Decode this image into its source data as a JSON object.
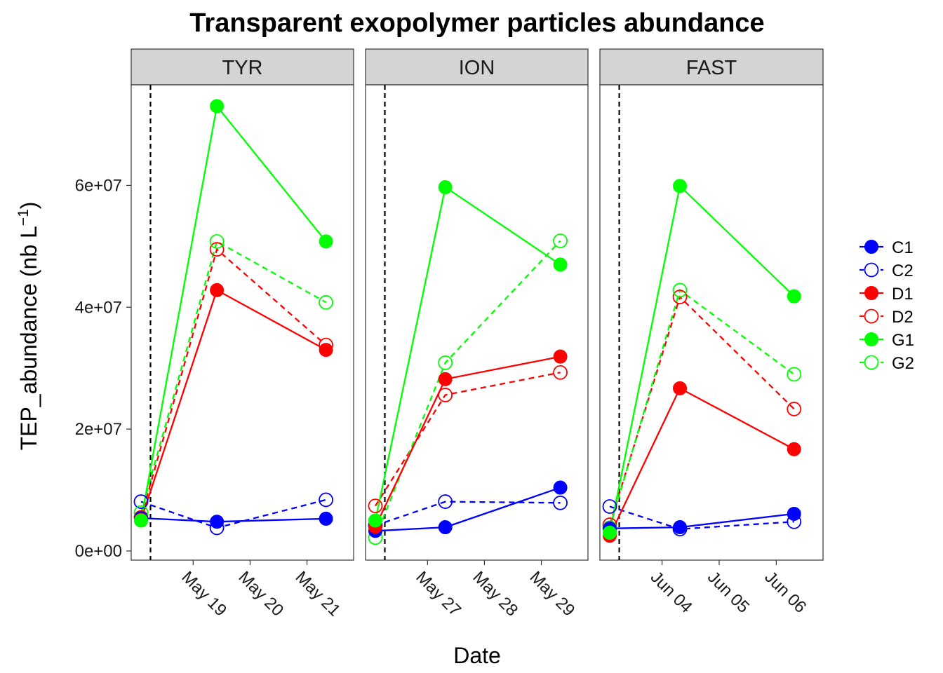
{
  "chart_data": {
    "type": "line",
    "title": "Transparent exopolymer particles abundance",
    "xlabel": "Date",
    "ylabel": "TEP_abundance (nb L",
    "ylabel_superscript": "−1",
    "ylabel_close": ")",
    "ylim": [
      -1500000,
      76500000
    ],
    "y_ticks": [
      0,
      20000000,
      40000000,
      60000000
    ],
    "y_tick_labels": [
      "0e+00",
      "2e+07",
      "4e+07",
      "6e+07"
    ],
    "grid": false,
    "legend_position": "right",
    "colors": {
      "C": "#0000ff",
      "D": "#ff0000",
      "G": "#00ff00"
    },
    "legend": [
      {
        "name": "C1",
        "color": "#0000ff",
        "filled": true,
        "dashed": false
      },
      {
        "name": "C2",
        "color": "#0000ff",
        "filled": false,
        "dashed": true
      },
      {
        "name": "D1",
        "color": "#ff0000",
        "filled": true,
        "dashed": false
      },
      {
        "name": "D2",
        "color": "#ff0000",
        "filled": false,
        "dashed": true
      },
      {
        "name": "G1",
        "color": "#00ff00",
        "filled": true,
        "dashed": false
      },
      {
        "name": "G2",
        "color": "#00ff00",
        "filled": false,
        "dashed": true
      }
    ],
    "panels": [
      {
        "label": "TYR",
        "xlim": [
          "2015-05-17T21:52",
          "2015-05-21T19:40"
        ],
        "x_ticks": [
          "2015-05-19",
          "2015-05-20",
          "2015-05-21"
        ],
        "x_tick_labels": [
          "May 19",
          "May 20",
          "May 21"
        ],
        "vline": "2015-05-18T06:00",
        "x": [
          "2015-05-18T02:00",
          "2015-05-19T10:00",
          "2015-05-21T08:00"
        ],
        "series": [
          {
            "name": "C1",
            "values": [
              5400000,
              4800000,
              5300000
            ]
          },
          {
            "name": "C2",
            "values": [
              8100000,
              3800000,
              8400000
            ]
          },
          {
            "name": "D1",
            "values": [
              5100000,
              42800000,
              33000000
            ]
          },
          {
            "name": "D2",
            "values": [
              5500000,
              49500000,
              33800000
            ]
          },
          {
            "name": "G1",
            "values": [
              5000000,
              73000000,
              50800000
            ]
          },
          {
            "name": "G2",
            "values": [
              6300000,
              50800000,
              40800000
            ]
          }
        ]
      },
      {
        "label": "ION",
        "xlim": [
          "2015-05-25T21:52",
          "2015-05-29T19:40"
        ],
        "x_ticks": [
          "2015-05-27",
          "2015-05-28",
          "2015-05-29"
        ],
        "x_tick_labels": [
          "May 27",
          "May 28",
          "May 29"
        ],
        "vline": "2015-05-26T06:00",
        "x": [
          "2015-05-26T02:00",
          "2015-05-27T07:30",
          "2015-05-29T08:00"
        ],
        "series": [
          {
            "name": "C1",
            "values": [
              3300000,
              3900000,
              10400000
            ]
          },
          {
            "name": "C2",
            "values": [
              4200000,
              8100000,
              7900000
            ]
          },
          {
            "name": "D1",
            "values": [
              4000000,
              28200000,
              31900000
            ]
          },
          {
            "name": "D2",
            "values": [
              7400000,
              25600000,
              29300000
            ]
          },
          {
            "name": "G1",
            "values": [
              5000000,
              59700000,
              47000000
            ]
          },
          {
            "name": "G2",
            "values": [
              2200000,
              30900000,
              50900000
            ]
          }
        ]
      },
      {
        "label": "FAST",
        "xlim": [
          "2015-06-02T21:52",
          "2015-06-06T19:40"
        ],
        "x_ticks": [
          "2015-06-04",
          "2015-06-05",
          "2015-06-06"
        ],
        "x_tick_labels": [
          "Jun 04",
          "Jun 05",
          "Jun 06"
        ],
        "vline": "2015-06-03T06:00",
        "x": [
          "2015-06-03T02:00",
          "2015-06-04T07:30",
          "2015-06-06T07:30"
        ],
        "series": [
          {
            "name": "C1",
            "values": [
              3700000,
              3900000,
              6100000
            ]
          },
          {
            "name": "C2",
            "values": [
              7300000,
              3600000,
              4800000
            ]
          },
          {
            "name": "D1",
            "values": [
              2500000,
              26700000,
              16700000
            ]
          },
          {
            "name": "D2",
            "values": [
              4300000,
              41700000,
              23300000
            ]
          },
          {
            "name": "G1",
            "values": [
              3000000,
              59900000,
              41800000
            ]
          },
          {
            "name": "G2",
            "values": [
              3800000,
              42800000,
              29000000
            ]
          }
        ]
      }
    ]
  }
}
